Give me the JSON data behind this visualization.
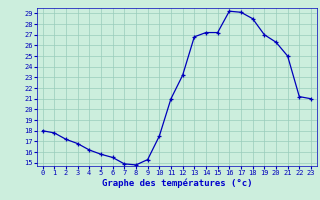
{
  "hours": [
    0,
    1,
    2,
    3,
    4,
    5,
    6,
    7,
    8,
    9,
    10,
    11,
    12,
    13,
    14,
    15,
    16,
    17,
    18,
    19,
    20,
    21,
    22,
    23
  ],
  "temps": [
    18,
    17.8,
    17.2,
    16.8,
    16.2,
    15.8,
    15.5,
    14.9,
    14.8,
    15.3,
    17.5,
    21,
    23.2,
    26.8,
    27.2,
    27.2,
    29.2,
    29.1,
    28.5,
    27.0,
    26.3,
    25.0,
    21.2,
    21.0
  ],
  "line_color": "#0000bb",
  "marker": "+",
  "bg_color": "#cceedd",
  "grid_color": "#99ccbb",
  "xlabel": "Graphe des températures (°c)",
  "xlabel_color": "#0000cc",
  "ylim_min": 15,
  "ylim_max": 29,
  "yticks": [
    15,
    16,
    17,
    18,
    19,
    20,
    21,
    22,
    23,
    24,
    25,
    26,
    27,
    28,
    29
  ],
  "xticks": [
    0,
    1,
    2,
    3,
    4,
    5,
    6,
    7,
    8,
    9,
    10,
    11,
    12,
    13,
    14,
    15,
    16,
    17,
    18,
    19,
    20,
    21,
    22,
    23
  ],
  "tick_fontsize": 5,
  "label_fontsize": 6.5
}
